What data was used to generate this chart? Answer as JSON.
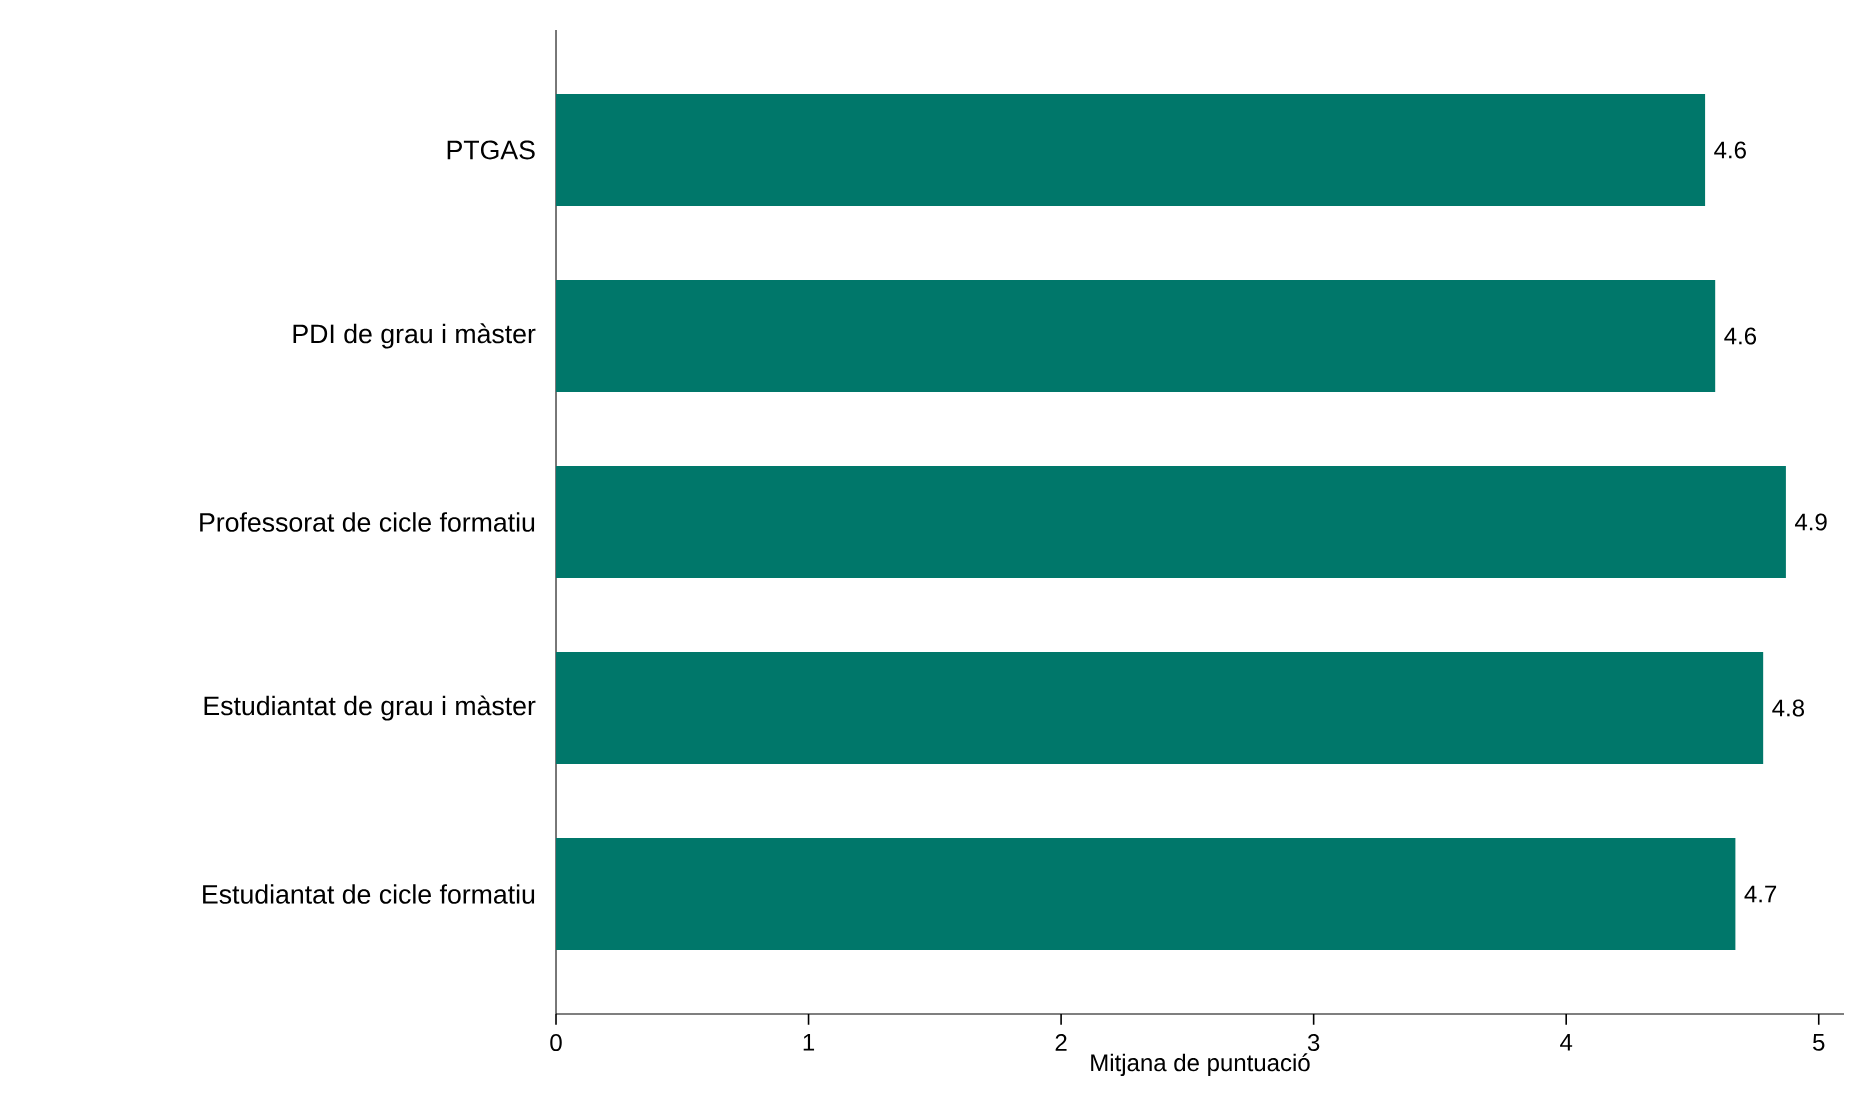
{
  "chart_data": {
    "type": "bar",
    "orientation": "horizontal",
    "xlabel": "Mitjana de puntuació",
    "categories": [
      "PTGAS",
      "PDI de grau i màster",
      "Professorat de cicle formatiu",
      "Estudiantat de grau i màster",
      "Estudiantat de cicle formatiu"
    ],
    "values": [
      4.55,
      4.59,
      4.87,
      4.78,
      4.67
    ],
    "value_labels": [
      "4.6",
      "4.6",
      "4.9",
      "4.8",
      "4.7"
    ],
    "color": "#00776a",
    "xlim": [
      0,
      5.1
    ],
    "xticks": [
      0,
      1,
      2,
      3,
      4,
      5
    ]
  }
}
